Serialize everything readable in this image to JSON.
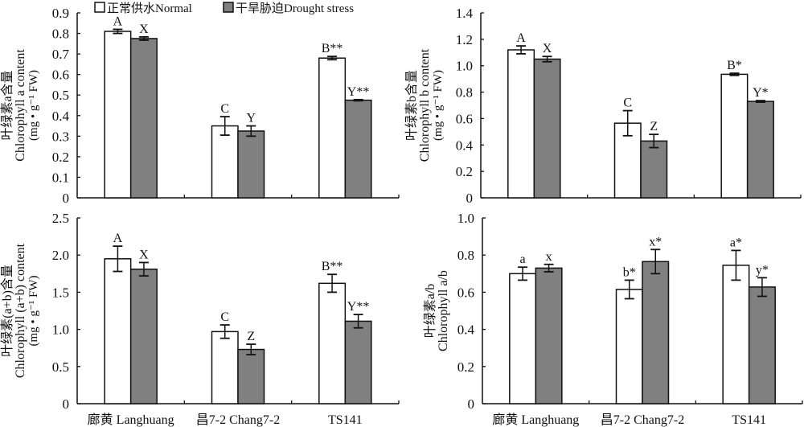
{
  "legend": {
    "items": [
      {
        "label": "正常供水Normal",
        "color": "#ffffff"
      },
      {
        "label": "干旱胁迫Drought stress",
        "color": "#808080"
      }
    ],
    "placement": "top"
  },
  "chart_data": [
    {
      "type": "bar",
      "categories": [
        "廊黄 Langhuang",
        "昌7-2 Chang7-2",
        "TS141"
      ],
      "ylabel_cn": "叶绿素a含量",
      "ylabel": "Chlorophyll a content",
      "yunit": "(mg • g⁻¹ FW)",
      "ylim": [
        0,
        0.9
      ],
      "yticks": [
        0,
        0.1,
        0.2,
        0.3,
        0.4,
        0.5,
        0.6,
        0.7,
        0.8,
        0.9
      ],
      "ytick_labels": [
        "0",
        "0.1",
        "0.2",
        "0.3",
        "0.4",
        "0.5",
        "0.6",
        "0.7",
        "0.8",
        "0.9"
      ],
      "show_xlabels": false,
      "series": [
        {
          "name": "正常供水Normal",
          "values": [
            0.81,
            0.35,
            0.68
          ],
          "errors": [
            0.01,
            0.045,
            0.008
          ],
          "labels": [
            "A",
            "C",
            "B**"
          ]
        },
        {
          "name": "干旱胁迫Drought stress",
          "values": [
            0.775,
            0.325,
            0.475
          ],
          "errors": [
            0.008,
            0.025,
            0.003
          ],
          "labels": [
            "X",
            "Y",
            "Y**"
          ]
        }
      ]
    },
    {
      "type": "bar",
      "categories": [
        "廊黄 Langhuang",
        "昌7-2 Chang7-2",
        "TS141"
      ],
      "ylabel_cn": "叶绿素b含量",
      "ylabel": "Chlorophyll b content",
      "yunit": "(mg • g⁻¹ FW)",
      "ylim": [
        0,
        1.4
      ],
      "yticks": [
        0,
        0.2,
        0.4,
        0.6,
        0.8,
        1.0,
        1.2,
        1.4
      ],
      "ytick_labels": [
        "0",
        "0.2",
        "0.4",
        "0.6",
        "0.8",
        "1.0",
        "1.2",
        "1.4"
      ],
      "show_xlabels": false,
      "series": [
        {
          "name": "正常供水Normal",
          "values": [
            1.12,
            0.565,
            0.935
          ],
          "errors": [
            0.03,
            0.095,
            0.008
          ],
          "labels": [
            "A",
            "C",
            "B*"
          ]
        },
        {
          "name": "干旱胁迫Drought stress",
          "values": [
            1.05,
            0.43,
            0.73
          ],
          "errors": [
            0.02,
            0.05,
            0.006
          ],
          "labels": [
            "X",
            "Z",
            "Y*"
          ]
        }
      ]
    },
    {
      "type": "bar",
      "categories": [
        "廊黄 Langhuang",
        "昌7-2 Chang7-2",
        "TS141"
      ],
      "ylabel_cn": "叶绿素(a+b)含量",
      "ylabel": "Chlorophyll (a+b) content",
      "yunit": "(mg • g⁻¹ FW)",
      "ylim": [
        0,
        2.5
      ],
      "yticks": [
        0,
        0.5,
        1.0,
        1.5,
        2.0,
        2.5
      ],
      "ytick_labels": [
        "0",
        "0.5",
        "1.0",
        "1.5",
        "2.0",
        "2.5"
      ],
      "show_xlabels": true,
      "series": [
        {
          "name": "正常供水Normal",
          "values": [
            1.95,
            0.97,
            1.62
          ],
          "errors": [
            0.17,
            0.09,
            0.12
          ],
          "labels": [
            "A",
            "C",
            "B**"
          ]
        },
        {
          "name": "干旱胁迫Drought stress",
          "values": [
            1.81,
            0.73,
            1.11
          ],
          "errors": [
            0.09,
            0.07,
            0.09
          ],
          "labels": [
            "X",
            "Z",
            "Y**"
          ]
        }
      ]
    },
    {
      "type": "bar",
      "categories": [
        "廊黄 Langhuang",
        "昌7-2 Chang7-2",
        "TS141"
      ],
      "ylabel_cn": "叶绿素a/b",
      "ylabel": "Chlorophyll a/b",
      "yunit": "",
      "ylim": [
        0,
        1.0
      ],
      "yticks": [
        0,
        0.2,
        0.4,
        0.6,
        0.8,
        1.0
      ],
      "ytick_labels": [
        "0",
        "0.2",
        "0.4",
        "0.6",
        "0.8",
        "1.0"
      ],
      "show_xlabels": true,
      "series": [
        {
          "name": "正常供水Normal",
          "values": [
            0.7,
            0.615,
            0.745
          ],
          "errors": [
            0.035,
            0.05,
            0.08
          ],
          "labels": [
            "a",
            "b*",
            "a*"
          ]
        },
        {
          "name": "干旱胁迫Drought stress",
          "values": [
            0.73,
            0.765,
            0.628
          ],
          "errors": [
            0.02,
            0.065,
            0.05
          ],
          "labels": [
            "x",
            "x*",
            "y*"
          ]
        }
      ]
    }
  ]
}
